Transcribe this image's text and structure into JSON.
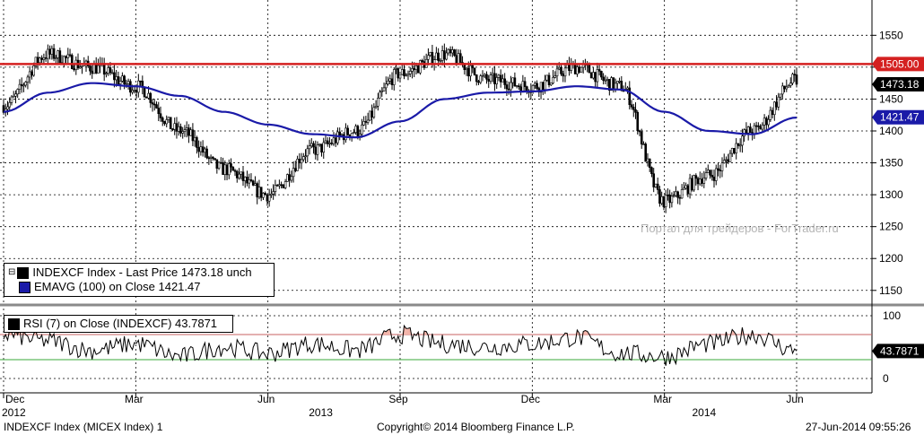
{
  "chart_data": [
    {
      "type": "line",
      "subtype": "candlestick",
      "x_range": [
        "2012-12",
        "2014-06"
      ],
      "ylim": [
        1130,
        1580
      ],
      "yticks": [
        1150,
        1200,
        1250,
        1300,
        1350,
        1400,
        1450,
        1500,
        1550
      ],
      "grid": true,
      "series": [
        {
          "name": "INDEXCF Index - Last Price",
          "last_value": 1473.18,
          "unit": "unch",
          "color": "#000000",
          "x": [
            "2012-12",
            "2013-01",
            "2013-02",
            "2013-03",
            "2013-04",
            "2013-05",
            "2013-06",
            "2013-07",
            "2013-08",
            "2013-09",
            "2013-10",
            "2013-11",
            "2013-12",
            "2014-01",
            "2014-02",
            "2014-03",
            "2014-04",
            "2014-05",
            "2014-06"
          ],
          "values": [
            1440,
            1520,
            1500,
            1470,
            1400,
            1340,
            1300,
            1370,
            1400,
            1490,
            1520,
            1480,
            1470,
            1500,
            1470,
            1290,
            1330,
            1400,
            1480
          ]
        },
        {
          "name": "EMAVG (100) on Close",
          "last_value": 1421.47,
          "color": "#1a1aa8",
          "x": [
            "2012-12",
            "2013-01",
            "2013-02",
            "2013-03",
            "2013-04",
            "2013-05",
            "2013-06",
            "2013-07",
            "2013-08",
            "2013-09",
            "2013-10",
            "2013-11",
            "2013-12",
            "2014-01",
            "2014-02",
            "2014-03",
            "2014-04",
            "2014-05",
            "2014-06"
          ],
          "values": [
            1430,
            1460,
            1475,
            1470,
            1455,
            1430,
            1410,
            1395,
            1390,
            1415,
            1450,
            1460,
            1462,
            1470,
            1465,
            1430,
            1400,
            1395,
            1421
          ]
        }
      ],
      "reference_line": {
        "value": 1505.0,
        "label": "1505.00",
        "color": "#d42020"
      },
      "price_tags": [
        {
          "label": "1505.00",
          "value": 1505.0,
          "color": "#d42020"
        },
        {
          "label": "1473.18",
          "value": 1473.18,
          "color": "#000000"
        },
        {
          "label": "1421.47",
          "value": 1421.47,
          "color": "#1a1aa8"
        }
      ],
      "legend": [
        {
          "text": "INDEXCF Index - Last Price 1473.18  unch",
          "color": "#000000"
        },
        {
          "text": "EMAVG (100) on Close      1421.47",
          "color": "#1a1aa8"
        }
      ],
      "watermark": "Портал для трейдеров - ForTrader.ru"
    },
    {
      "type": "line",
      "ylim": [
        0,
        100
      ],
      "yticks": [
        0,
        100
      ],
      "overbought": 70,
      "oversold": 30,
      "grid": true,
      "series": [
        {
          "name": "RSI (7) on Close (INDEXCF)",
          "last_value": 43.7871,
          "color": "#000000",
          "x": [
            "2012-12",
            "2013-01",
            "2013-02",
            "2013-03",
            "2013-04",
            "2013-05",
            "2013-06",
            "2013-07",
            "2013-08",
            "2013-09",
            "2013-10",
            "2013-11",
            "2013-12",
            "2014-01",
            "2014-02",
            "2014-03",
            "2014-04",
            "2014-05",
            "2014-06"
          ],
          "values": [
            70,
            60,
            45,
            55,
            35,
            50,
            40,
            55,
            45,
            70,
            55,
            50,
            55,
            65,
            40,
            35,
            55,
            70,
            44
          ]
        }
      ],
      "price_tags": [
        {
          "label": "43.7871",
          "value": 43.7871,
          "color": "#000000"
        }
      ],
      "legend": [
        {
          "text": "RSI (7) on Close (INDEXCF) 43.7871",
          "color": "#000000"
        }
      ]
    }
  ],
  "x_axis": {
    "month_labels": [
      "Dec",
      "Mar",
      "Jun",
      "Sep",
      "Dec",
      "Mar",
      "Jun"
    ],
    "year_labels": [
      "2012",
      "2013",
      "2014"
    ]
  },
  "footer": {
    "left": "INDEXCF Index (MICEX Index) 1",
    "center": "Copyright© 2014 Bloomberg Finance L.P.",
    "right": "27-Jun-2014 09:55:26"
  }
}
